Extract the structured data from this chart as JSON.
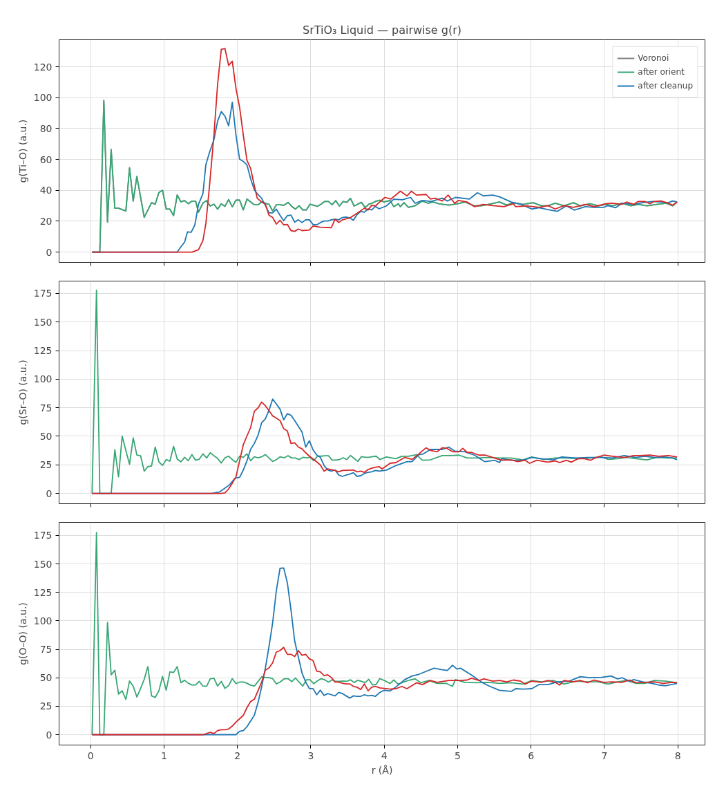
{
  "chart_data": [
    {
      "type": "line",
      "title": "SrTiO₃ Liquid — pairwise g(r)",
      "ylabel": "g(Ti–O) (a.u.)",
      "xlim": [
        -0.43,
        8.37
      ],
      "ylim": [
        -6.7,
        137.5
      ],
      "xticks": [
        0,
        1,
        2,
        3,
        4,
        5,
        6,
        7,
        8
      ],
      "yticks": [
        0,
        20,
        40,
        60,
        80,
        100,
        120
      ],
      "grid": true,
      "legend": "top right",
      "tick_labels": "y",
      "series": [
        {
          "name": "Voronoi",
          "color": "#808080",
          "x": [
            0.02,
            0.125,
            0.18,
            0.23,
            0.28,
            0.33,
            0.38,
            0.48,
            0.53,
            0.58,
            0.63,
            0.73,
            0.83,
            0.88,
            0.93,
            0.98,
            1.03,
            1.08,
            1.13,
            1.18,
            1.23,
            1.28,
            1.33,
            1.38,
            1.43,
            1.47,
            1.53,
            1.58,
            1.63,
            1.68,
            1.73,
            1.78,
            1.83,
            1.88,
            1.93,
            1.98,
            2.03,
            2.08,
            2.13,
            2.18,
            2.23,
            2.28,
            2.33,
            2.38,
            2.43,
            2.48,
            2.53,
            2.58,
            2.63,
            2.69,
            2.74,
            2.79,
            2.84,
            2.89,
            2.94,
            2.99,
            3.04,
            3.09,
            3.14,
            3.19,
            3.24,
            3.29,
            3.34,
            3.39,
            3.44,
            3.49,
            3.54,
            3.59,
            3.64,
            3.69,
            3.74,
            3.79,
            3.84,
            3.89,
            3.94,
            4.0,
            4.08,
            4.13,
            4.19,
            4.22,
            4.27,
            4.33,
            4.42,
            4.52,
            4.6,
            4.67,
            4.75,
            4.88,
            4.99,
            5.1,
            5.23,
            5.32,
            5.42,
            5.57,
            5.67,
            5.76,
            5.89,
            6.03,
            6.14,
            6.23,
            6.33,
            6.45,
            6.58,
            6.67,
            6.8,
            6.92,
            7.02,
            7.11,
            7.24,
            7.36,
            7.46,
            7.58,
            7.71,
            7.84,
            7.93,
            7.99
          ],
          "values": [
            0,
            0,
            98.2,
            19.4,
            66.4,
            28.4,
            28.4,
            26.6,
            54.6,
            33,
            49,
            22.5,
            32,
            31,
            38.5,
            40,
            27.8,
            27.8,
            23.6,
            37,
            32.5,
            33.3,
            31.3,
            33,
            33,
            25.8,
            31.8,
            33.3,
            29.8,
            31,
            27.8,
            31.3,
            29.6,
            34,
            29.3,
            33.6,
            33.6,
            27.3,
            34.3,
            32.5,
            30.6,
            30.6,
            32.5,
            31.5,
            31,
            26.6,
            30.6,
            30.6,
            30.3,
            32.2,
            29.6,
            27.8,
            30,
            27.3,
            27.3,
            31,
            30.3,
            29.6,
            31,
            32.8,
            32.8,
            30.6,
            33.3,
            29.8,
            32.8,
            32.2,
            34.8,
            29.8,
            31,
            32.2,
            28.8,
            31,
            31.8,
            33,
            33.6,
            32.4,
            33.4,
            29.4,
            31.3,
            29.4,
            32,
            29,
            30,
            33,
            31.6,
            32.4,
            31.2,
            30.4,
            31.2,
            32.4,
            29.9,
            30,
            30.9,
            32.4,
            30.4,
            32,
            30.9,
            32,
            30,
            30,
            31.6,
            30,
            32,
            29.9,
            31.3,
            30,
            30.9,
            30,
            31.6,
            30,
            30.9,
            30,
            30.9,
            31.6,
            30,
            32.4
          ]
        },
        {
          "name": "after orient",
          "color": "#37a673",
          "x": [
            0.02,
            0.125,
            0.18,
            0.23,
            0.28,
            0.33,
            0.38,
            0.48,
            0.53,
            0.58,
            0.63,
            0.73,
            0.83,
            0.88,
            0.93,
            0.98,
            1.03,
            1.08,
            1.13,
            1.18,
            1.23,
            1.28,
            1.33,
            1.38,
            1.43,
            1.47,
            1.53,
            1.58,
            1.63,
            1.68,
            1.73,
            1.78,
            1.83,
            1.88,
            1.93,
            1.98,
            2.03,
            2.08,
            2.13,
            2.18,
            2.23,
            2.28,
            2.33,
            2.38,
            2.43,
            2.48,
            2.53,
            2.58,
            2.63,
            2.69,
            2.74,
            2.79,
            2.84,
            2.89,
            2.94,
            2.99,
            3.04,
            3.09,
            3.14,
            3.19,
            3.24,
            3.29,
            3.34,
            3.39,
            3.44,
            3.49,
            3.54,
            3.59,
            3.64,
            3.69,
            3.74,
            3.79,
            3.84,
            3.89,
            3.94,
            4.0,
            4.08,
            4.13,
            4.19,
            4.22,
            4.27,
            4.33,
            4.42,
            4.52,
            4.6,
            4.67,
            4.75,
            4.88,
            4.99,
            5.1,
            5.23,
            5.32,
            5.42,
            5.57,
            5.67,
            5.76,
            5.89,
            6.03,
            6.14,
            6.23,
            6.33,
            6.45,
            6.58,
            6.67,
            6.8,
            6.92,
            7.02,
            7.11,
            7.24,
            7.36,
            7.46,
            7.58,
            7.71,
            7.84,
            7.93,
            7.99
          ],
          "values": [
            0,
            0,
            98.2,
            19.4,
            66.4,
            28.4,
            28.4,
            26.6,
            54.6,
            33,
            49,
            22.5,
            32,
            31,
            38.5,
            40,
            27.8,
            27.8,
            23.6,
            37,
            32.5,
            33.3,
            31.3,
            33,
            33,
            25.8,
            31.8,
            33.3,
            29.8,
            31,
            27.8,
            31.3,
            29.6,
            34,
            29.3,
            33.6,
            33.6,
            27.3,
            34.3,
            32.5,
            30.6,
            30.6,
            32.5,
            31.5,
            31,
            26.6,
            30.6,
            30.6,
            30.3,
            32.2,
            29.6,
            27.8,
            30,
            27.3,
            27.3,
            31,
            30.3,
            29.6,
            31,
            32.8,
            32.8,
            30.6,
            33.3,
            29.8,
            32.8,
            32.2,
            34.8,
            29.8,
            31,
            32.2,
            28.8,
            31,
            31.8,
            33,
            33.6,
            32.4,
            33.4,
            29.4,
            31.3,
            29.4,
            32,
            29,
            30,
            33,
            31.6,
            32.4,
            31.2,
            30.4,
            31.2,
            32.4,
            29.9,
            30,
            30.9,
            32.4,
            30.4,
            32,
            30.9,
            32,
            30,
            30,
            31.6,
            30,
            32,
            29.9,
            31.3,
            30,
            30.9,
            30,
            31.6,
            30,
            30.9,
            30,
            30.9,
            31.6,
            30,
            32.4
          ]
        },
        {
          "name": "after cleanup",
          "color": "#1f77b4",
          "x": [
            0.02,
            1.18,
            1.23,
            1.28,
            1.32,
            1.37,
            1.42,
            1.47,
            1.53,
            1.57,
            1.62,
            1.68,
            1.73,
            1.78,
            1.83,
            1.88,
            1.93,
            1.98,
            2.03,
            2.08,
            2.13,
            2.18,
            2.23,
            2.27,
            2.33,
            2.38,
            2.43,
            2.48,
            2.53,
            2.58,
            2.63,
            2.68,
            2.73,
            2.78,
            2.83,
            2.88,
            2.93,
            2.98,
            3.03,
            3.08,
            3.13,
            3.18,
            3.23,
            3.28,
            3.33,
            3.38,
            3.43,
            3.48,
            3.53,
            3.58,
            3.63,
            3.68,
            3.73,
            3.78,
            3.83,
            3.88,
            3.93,
            4.03,
            4.13,
            4.25,
            4.36,
            4.42,
            4.52,
            4.64,
            4.79,
            4.86,
            4.97,
            5.16,
            5.27,
            5.35,
            5.48,
            5.57,
            5.73,
            5.86,
            6.01,
            6.11,
            6.23,
            6.36,
            6.48,
            6.59,
            6.74,
            6.86,
            6.99,
            7.05,
            7.15,
            7.24,
            7.4,
            7.52,
            7.65,
            7.77,
            7.87,
            7.93,
            7.99
          ],
          "values": [
            0,
            0,
            3.4,
            6.4,
            13.1,
            12.8,
            17.6,
            31,
            37.8,
            56.7,
            64.6,
            72.8,
            84.8,
            91,
            88,
            81.8,
            97,
            75.8,
            60.1,
            58.7,
            56.4,
            47.5,
            40.3,
            37.8,
            34.8,
            30.3,
            25.4,
            25.4,
            27.8,
            23.9,
            20.3,
            23.6,
            23.9,
            19.4,
            20.9,
            19.1,
            20.9,
            20.9,
            17.9,
            17.6,
            19.1,
            20.1,
            20.1,
            20.9,
            21.2,
            20.9,
            22.4,
            22.7,
            22.1,
            20.6,
            24.3,
            26.3,
            25.8,
            28,
            27.3,
            29.6,
            28,
            29.9,
            34.2,
            33.9,
            35.4,
            31.6,
            33.4,
            32.8,
            34.9,
            33.1,
            35.4,
            34.3,
            38.4,
            36.4,
            36.9,
            35.8,
            32.4,
            30.9,
            27.9,
            28.7,
            27.5,
            26.4,
            29.9,
            27.2,
            29.4,
            29,
            29,
            30.1,
            28.7,
            31.6,
            30.9,
            32,
            32.8,
            32.4,
            32,
            33.1,
            32.4
          ]
        },
        {
          "color": "#d62728",
          "x": [
            0.02,
            1.38,
            1.47,
            1.53,
            1.57,
            1.62,
            1.68,
            1.73,
            1.78,
            1.83,
            1.88,
            1.93,
            1.98,
            2.03,
            2.08,
            2.13,
            2.18,
            2.23,
            2.27,
            2.33,
            2.38,
            2.43,
            2.48,
            2.53,
            2.58,
            2.63,
            2.68,
            2.73,
            2.78,
            2.83,
            2.88,
            2.98,
            3.03,
            3.13,
            3.28,
            3.33,
            3.38,
            3.43,
            3.53,
            3.63,
            3.73,
            3.78,
            3.83,
            3.88,
            3.94,
            4.01,
            4.09,
            4.22,
            4.31,
            4.37,
            4.44,
            4.57,
            4.63,
            4.69,
            4.79,
            4.87,
            4.96,
            5.01,
            5.13,
            5.23,
            5.35,
            5.48,
            5.63,
            5.76,
            5.79,
            5.95,
            6.11,
            6.23,
            6.33,
            6.45,
            6.58,
            6.74,
            6.86,
            7.02,
            7.11,
            7.24,
            7.3,
            7.4,
            7.46,
            7.55,
            7.62,
            7.68,
            7.77,
            7.87,
            7.93,
            7.99
          ],
          "values": [
            0,
            0,
            1.5,
            7.5,
            18.4,
            43,
            75.8,
            108.7,
            131.3,
            131.8,
            120.9,
            123.6,
            106,
            93.7,
            75.8,
            59.4,
            54.2,
            43,
            34.8,
            32.5,
            31,
            23.9,
            22.4,
            18.1,
            20.6,
            17.6,
            17.9,
            13.9,
            13.4,
            14.9,
            13.9,
            14.3,
            16.9,
            16.1,
            15.8,
            21.3,
            19.1,
            20.9,
            22.1,
            25.1,
            28.4,
            27.3,
            30.3,
            29.8,
            32.5,
            35.4,
            34.3,
            39.4,
            36.4,
            39.4,
            36.9,
            37.3,
            34.3,
            34.9,
            33.1,
            36.9,
            31.6,
            33.4,
            32.4,
            29.4,
            30.9,
            30.1,
            29.4,
            31.3,
            29.4,
            29.9,
            29,
            30.1,
            27.9,
            30.1,
            29,
            30.9,
            29.4,
            31.3,
            31.6,
            30.9,
            32.4,
            30.9,
            32.8,
            32.8,
            31.3,
            32.8,
            33.1,
            31.6,
            30.4,
            32.4
          ]
        }
      ]
    },
    {
      "type": "line",
      "ylabel": "g(Sr–O) (a.u.)",
      "xlim": [
        -0.43,
        8.37
      ],
      "ylim": [
        -9.0,
        185.8
      ],
      "xticks": [
        0,
        1,
        2,
        3,
        4,
        5,
        6,
        7,
        8
      ],
      "yticks": [
        0,
        25,
        50,
        75,
        100,
        125,
        150,
        175
      ],
      "grid": true,
      "tick_labels": "y",
      "series": [
        {
          "color": "#37a673",
          "x": [
            0.02,
            0.08,
            0.125,
            0.28,
            0.33,
            0.38,
            0.43,
            0.48,
            0.53,
            0.58,
            0.63,
            0.68,
            0.73,
            0.78,
            0.83,
            0.88,
            0.93,
            0.98,
            1.03,
            1.08,
            1.13,
            1.18,
            1.23,
            1.28,
            1.33,
            1.38,
            1.43,
            1.48,
            1.53,
            1.58,
            1.63,
            1.68,
            1.73,
            1.78,
            1.83,
            1.88,
            1.93,
            1.98,
            2.03,
            2.08,
            2.13,
            2.18,
            2.23,
            2.28,
            2.33,
            2.38,
            2.43,
            2.48,
            2.53,
            2.58,
            2.64,
            2.69,
            2.74,
            2.79,
            2.84,
            2.89,
            2.94,
            2.99,
            3.04,
            3.09,
            3.14,
            3.19,
            3.24,
            3.29,
            3.34,
            3.39,
            3.44,
            3.49,
            3.54,
            3.59,
            3.64,
            3.69,
            3.74,
            3.79,
            3.84,
            3.89,
            3.94,
            4.03,
            4.16,
            4.24,
            4.33,
            4.44,
            4.52,
            4.63,
            4.79,
            4.91,
            5.02,
            5.13,
            5.26,
            5.42,
            5.57,
            5.73,
            5.89,
            6.01,
            6.17,
            6.33,
            6.48,
            6.64,
            6.8,
            6.96,
            7.05,
            7.18,
            7.3,
            7.43,
            7.58,
            7.71,
            7.87,
            7.99
          ],
          "values": [
            0,
            177.8,
            0,
            0,
            38.2,
            14.5,
            50.1,
            37.6,
            25.5,
            48.7,
            33.6,
            33,
            19.5,
            23.5,
            24.1,
            40.6,
            27.6,
            24.5,
            29.6,
            28.2,
            41.2,
            30,
            27.6,
            31.6,
            28.6,
            34,
            29,
            30,
            34.6,
            31,
            35.6,
            33,
            30.6,
            26.6,
            31.2,
            32.6,
            29.6,
            27.2,
            32.6,
            31.6,
            34.6,
            28.6,
            32,
            31.2,
            32,
            34,
            31,
            28,
            29.6,
            32,
            31.2,
            33,
            31,
            31,
            29.6,
            31.6,
            31.2,
            31.6,
            28.6,
            32.6,
            32.6,
            33,
            33,
            29.2,
            29.2,
            29.6,
            31.2,
            29.6,
            33.2,
            30.6,
            28,
            32.2,
            31.6,
            31.6,
            32.2,
            32.6,
            29.6,
            31.9,
            30.4,
            32.5,
            32.5,
            33.9,
            29,
            29.4,
            33.1,
            33.1,
            33.5,
            31,
            31,
            31.5,
            31,
            31,
            29.4,
            31.9,
            29.8,
            31,
            31,
            30.4,
            31,
            31.9,
            29.8,
            30.4,
            31.5,
            30.4,
            29.4,
            31.5,
            31,
            31
          ]
        },
        {
          "color": "#1f77b4",
          "x": [
            0.02,
            1.65,
            1.76,
            1.89,
            1.97,
            2.03,
            2.08,
            2.13,
            2.18,
            2.23,
            2.28,
            2.33,
            2.38,
            2.43,
            2.48,
            2.53,
            2.58,
            2.63,
            2.68,
            2.73,
            2.78,
            2.83,
            2.88,
            2.93,
            2.98,
            3.03,
            3.08,
            3.13,
            3.18,
            3.23,
            3.28,
            3.33,
            3.38,
            3.43,
            3.48,
            3.53,
            3.58,
            3.63,
            3.68,
            3.73,
            3.78,
            3.83,
            3.88,
            3.93,
            4.03,
            4.16,
            4.31,
            4.38,
            4.47,
            4.53,
            4.63,
            4.79,
            4.88,
            4.96,
            5.1,
            5.23,
            5.37,
            5.51,
            5.57,
            5.6,
            5.73,
            5.89,
            6.01,
            6.14,
            6.3,
            6.42,
            6.61,
            6.77,
            6.96,
            7.11,
            7.27,
            7.43,
            7.55,
            7.68,
            7.81,
            7.93,
            7.99
          ],
          "values": [
            0,
            0,
            1.4,
            7.4,
            13.5,
            14.1,
            20.5,
            28.6,
            38.6,
            43.7,
            50.7,
            61.8,
            65.2,
            72.8,
            82.5,
            78.3,
            73.8,
            64.4,
            69.8,
            68.4,
            63.8,
            58.7,
            53.7,
            40.6,
            46.1,
            38.2,
            33.6,
            31.6,
            24.5,
            20.5,
            19.5,
            20.5,
            16.1,
            14.9,
            16.1,
            16.9,
            18.1,
            14.9,
            15.5,
            17.5,
            18.5,
            18.9,
            20.1,
            19.5,
            20.4,
            24.4,
            27.8,
            27.8,
            33.9,
            34.5,
            38.5,
            38.5,
            40.5,
            37.1,
            36.5,
            33.5,
            27.8,
            29,
            27,
            30.4,
            29,
            29,
            31.5,
            30.4,
            29.4,
            31.9,
            31,
            31.5,
            31.5,
            31,
            33.1,
            31.5,
            32.5,
            31.5,
            31.9,
            31,
            29.4
          ]
        },
        {
          "color": "#d62728",
          "x": [
            0.02,
            1.78,
            1.83,
            1.88,
            1.93,
            1.98,
            2.03,
            2.08,
            2.13,
            2.18,
            2.23,
            2.28,
            2.33,
            2.38,
            2.43,
            2.48,
            2.53,
            2.58,
            2.63,
            2.68,
            2.73,
            2.78,
            2.83,
            2.88,
            2.93,
            2.98,
            3.03,
            3.08,
            3.13,
            3.18,
            3.23,
            3.33,
            3.38,
            3.43,
            3.58,
            3.63,
            3.68,
            3.73,
            3.78,
            3.83,
            3.88,
            3.93,
            3.97,
            4.08,
            4.16,
            4.28,
            4.38,
            4.47,
            4.57,
            4.64,
            4.72,
            4.79,
            4.85,
            4.93,
            5.02,
            5.07,
            5.13,
            5.19,
            5.29,
            5.38,
            5.48,
            5.6,
            5.73,
            5.82,
            5.92,
            5.98,
            6.08,
            6.23,
            6.33,
            6.39,
            6.48,
            6.55,
            6.64,
            6.73,
            6.81,
            6.89,
            6.99,
            7.11,
            7.27,
            7.4,
            7.49,
            7.62,
            7.74,
            7.87,
            7.99
          ],
          "values": [
            0,
            0,
            0.4,
            4,
            8.9,
            14.5,
            28.6,
            42.6,
            50.3,
            57.7,
            71.8,
            74.8,
            79.9,
            76.8,
            72.4,
            67.8,
            65.8,
            63.8,
            56.7,
            54.7,
            43.7,
            44.3,
            40.6,
            39,
            35.6,
            32.6,
            30.2,
            27.6,
            24.9,
            19.5,
            21.5,
            20.1,
            18.9,
            20.1,
            20.5,
            18.9,
            19.5,
            18.5,
            20.9,
            22.1,
            22.9,
            23.5,
            21.4,
            26.4,
            27,
            31.5,
            29.8,
            34.5,
            39.9,
            37.5,
            36.5,
            39.9,
            39.5,
            36.5,
            36.5,
            39.5,
            35.9,
            35.9,
            33.5,
            33.5,
            31.5,
            29,
            29.4,
            27.8,
            29,
            26.4,
            29,
            27.4,
            28.4,
            27,
            29,
            27.4,
            30.4,
            30.4,
            29,
            31.5,
            33.5,
            32.5,
            31.5,
            33.1,
            33.1,
            33.5,
            32.5,
            33.1,
            31.9
          ]
        }
      ]
    },
    {
      "type": "line",
      "ylabel": "g(O–O) (a.u.)",
      "xlabel": "r (Å)",
      "xlim": [
        -0.43,
        8.37
      ],
      "ylim": [
        -9.1,
        186.5
      ],
      "xticks": [
        0,
        1,
        2,
        3,
        4,
        5,
        6,
        7,
        8
      ],
      "yticks": [
        0,
        25,
        50,
        75,
        100,
        125,
        150,
        175
      ],
      "grid": true,
      "series": [
        {
          "color": "#37a673",
          "x": [
            0.02,
            0.08,
            0.125,
            0.18,
            0.23,
            0.28,
            0.33,
            0.38,
            0.43,
            0.48,
            0.53,
            0.58,
            0.63,
            0.68,
            0.73,
            0.78,
            0.83,
            0.88,
            0.93,
            0.98,
            1.03,
            1.08,
            1.13,
            1.18,
            1.23,
            1.28,
            1.33,
            1.38,
            1.43,
            1.48,
            1.53,
            1.58,
            1.63,
            1.68,
            1.73,
            1.78,
            1.83,
            1.88,
            1.93,
            1.98,
            2.03,
            2.08,
            2.13,
            2.18,
            2.23,
            2.28,
            2.33,
            2.38,
            2.43,
            2.48,
            2.53,
            2.58,
            2.64,
            2.69,
            2.74,
            2.79,
            2.84,
            2.89,
            2.94,
            2.99,
            3.04,
            3.09,
            3.14,
            3.19,
            3.24,
            3.29,
            3.34,
            3.39,
            3.44,
            3.49,
            3.54,
            3.59,
            3.64,
            3.69,
            3.74,
            3.79,
            3.84,
            3.89,
            3.94,
            4.0,
            4.08,
            4.13,
            4.19,
            4.27,
            4.35,
            4.42,
            4.5,
            4.61,
            4.72,
            4.85,
            4.93,
            4.97,
            5.1,
            5.26,
            5.42,
            5.57,
            5.73,
            5.89,
            6.01,
            6.14,
            6.3,
            6.45,
            6.61,
            6.77,
            6.92,
            7.05,
            7.18,
            7.3,
            7.43,
            7.55,
            7.68,
            7.84,
            7.99
          ],
          "values": [
            0,
            177.6,
            0,
            0,
            98.7,
            52.6,
            56.6,
            35.7,
            38.5,
            31.1,
            47.2,
            42.5,
            33.1,
            40.5,
            48.6,
            59.8,
            34.1,
            32.7,
            38.5,
            51.2,
            39.1,
            55.2,
            54.6,
            59.8,
            45.6,
            47.8,
            45.2,
            43.7,
            43.7,
            46.8,
            42.7,
            42.5,
            49.2,
            49.6,
            42.7,
            46.8,
            40.7,
            43.1,
            49.2,
            44.8,
            46.2,
            46.2,
            45.2,
            43.5,
            42.7,
            46.6,
            50.8,
            50.2,
            50.2,
            49.2,
            44.6,
            46.2,
            49.2,
            49.2,
            46.6,
            49.8,
            46.2,
            42.7,
            48.2,
            48.2,
            44.8,
            47.2,
            49.2,
            48.2,
            46.2,
            48.2,
            46.8,
            46.8,
            47.2,
            46.8,
            48.2,
            45.8,
            47.8,
            46.8,
            45.8,
            48.6,
            43.7,
            44.2,
            49.2,
            47.6,
            45,
            48,
            44.4,
            46.4,
            48,
            49,
            45.6,
            47.6,
            45,
            45,
            42.4,
            48.4,
            46,
            45.6,
            46,
            45,
            45.6,
            44.4,
            47.6,
            46.4,
            47.6,
            44.4,
            47,
            46.4,
            46.4,
            44.4,
            46.4,
            47.6,
            45,
            45,
            47.6,
            47,
            45.6
          ]
        },
        {
          "color": "#1f77b4",
          "x": [
            0.02,
            1.98,
            2.03,
            2.08,
            2.13,
            2.18,
            2.23,
            2.28,
            2.33,
            2.38,
            2.43,
            2.48,
            2.53,
            2.58,
            2.63,
            2.68,
            2.73,
            2.78,
            2.83,
            2.88,
            2.93,
            2.98,
            3.03,
            3.08,
            3.13,
            3.18,
            3.23,
            3.28,
            3.33,
            3.38,
            3.43,
            3.48,
            3.53,
            3.58,
            3.63,
            3.68,
            3.73,
            3.78,
            3.83,
            3.88,
            3.94,
            4.0,
            4.08,
            4.16,
            4.28,
            4.38,
            4.47,
            4.57,
            4.68,
            4.79,
            4.86,
            4.93,
            4.99,
            5.04,
            5.2,
            5.32,
            5.42,
            5.57,
            5.73,
            5.79,
            5.89,
            6.01,
            6.11,
            6.23,
            6.36,
            6.52,
            6.67,
            6.8,
            6.96,
            7.09,
            7.18,
            7.24,
            7.34,
            7.4,
            7.52,
            7.65,
            7.74,
            7.84,
            7.99
          ],
          "values": [
            0,
            0,
            3,
            3.6,
            7,
            12,
            17,
            28.1,
            42.1,
            58.2,
            77.3,
            98.3,
            126.4,
            146.1,
            146.5,
            133.5,
            109.4,
            82.3,
            68.2,
            54.2,
            46.2,
            40.5,
            40.5,
            35.1,
            39.1,
            34.5,
            36.1,
            35.1,
            34.1,
            37.1,
            36.1,
            34.1,
            32.1,
            34.1,
            33.7,
            33.7,
            35.1,
            34.1,
            34.5,
            33.7,
            37.1,
            39,
            38.4,
            42,
            48.4,
            51.6,
            53,
            55.6,
            58.4,
            57,
            56.4,
            61,
            57.6,
            58.4,
            52,
            46.4,
            43,
            39,
            38,
            40.4,
            40,
            40.4,
            44,
            44,
            46.4,
            47,
            51,
            50,
            50.4,
            51.6,
            49,
            50,
            47,
            48.4,
            46.4,
            45,
            43.6,
            43,
            45
          ]
        },
        {
          "color": "#d62728",
          "x": [
            0.02,
            1.53,
            1.63,
            1.68,
            1.73,
            1.78,
            1.83,
            1.88,
            1.93,
            1.98,
            2.03,
            2.08,
            2.13,
            2.18,
            2.23,
            2.28,
            2.33,
            2.38,
            2.43,
            2.48,
            2.53,
            2.58,
            2.63,
            2.68,
            2.73,
            2.78,
            2.83,
            2.88,
            2.93,
            2.98,
            3.03,
            3.08,
            3.13,
            3.18,
            3.23,
            3.28,
            3.33,
            3.38,
            3.43,
            3.48,
            3.53,
            3.58,
            3.63,
            3.68,
            3.73,
            3.78,
            3.83,
            3.88,
            3.94,
            4.08,
            4.16,
            4.24,
            4.31,
            4.44,
            4.52,
            4.63,
            4.72,
            4.88,
            5.04,
            5.13,
            5.19,
            5.29,
            5.36,
            5.48,
            5.57,
            5.67,
            5.76,
            5.86,
            5.92,
            6.01,
            6.14,
            6.23,
            6.33,
            6.39,
            6.45,
            6.58,
            6.67,
            6.77,
            6.86,
            6.99,
            7.11,
            7.24,
            7.34,
            7.43,
            7.55,
            7.68,
            7.8,
            7.93,
            7.99
          ],
          "values": [
            0,
            0,
            2,
            1,
            3.6,
            4.4,
            4.4,
            5,
            7.6,
            11,
            14,
            17,
            23.7,
            29.1,
            31.1,
            38.5,
            46.2,
            56.6,
            58.6,
            63.2,
            72.6,
            73.8,
            76.7,
            70.6,
            70.6,
            68.6,
            73.8,
            69.8,
            70.6,
            66.6,
            65.2,
            55.8,
            55.2,
            51.8,
            52.6,
            50.2,
            46.2,
            46.2,
            45.2,
            44.6,
            44.6,
            42.5,
            41.7,
            39.7,
            44.6,
            38.5,
            41.7,
            42.5,
            41.1,
            40,
            40.4,
            42.4,
            40.4,
            45.6,
            44,
            47.6,
            46,
            47.6,
            47.6,
            48,
            49.6,
            47.6,
            49,
            47,
            47.6,
            46.4,
            48,
            47,
            44.4,
            47,
            46,
            47.6,
            46,
            43.6,
            47.6,
            46.4,
            47.6,
            45.6,
            48,
            46,
            46.4,
            46,
            48,
            45.6,
            46,
            46.4,
            45,
            46,
            45.6
          ]
        }
      ]
    }
  ]
}
